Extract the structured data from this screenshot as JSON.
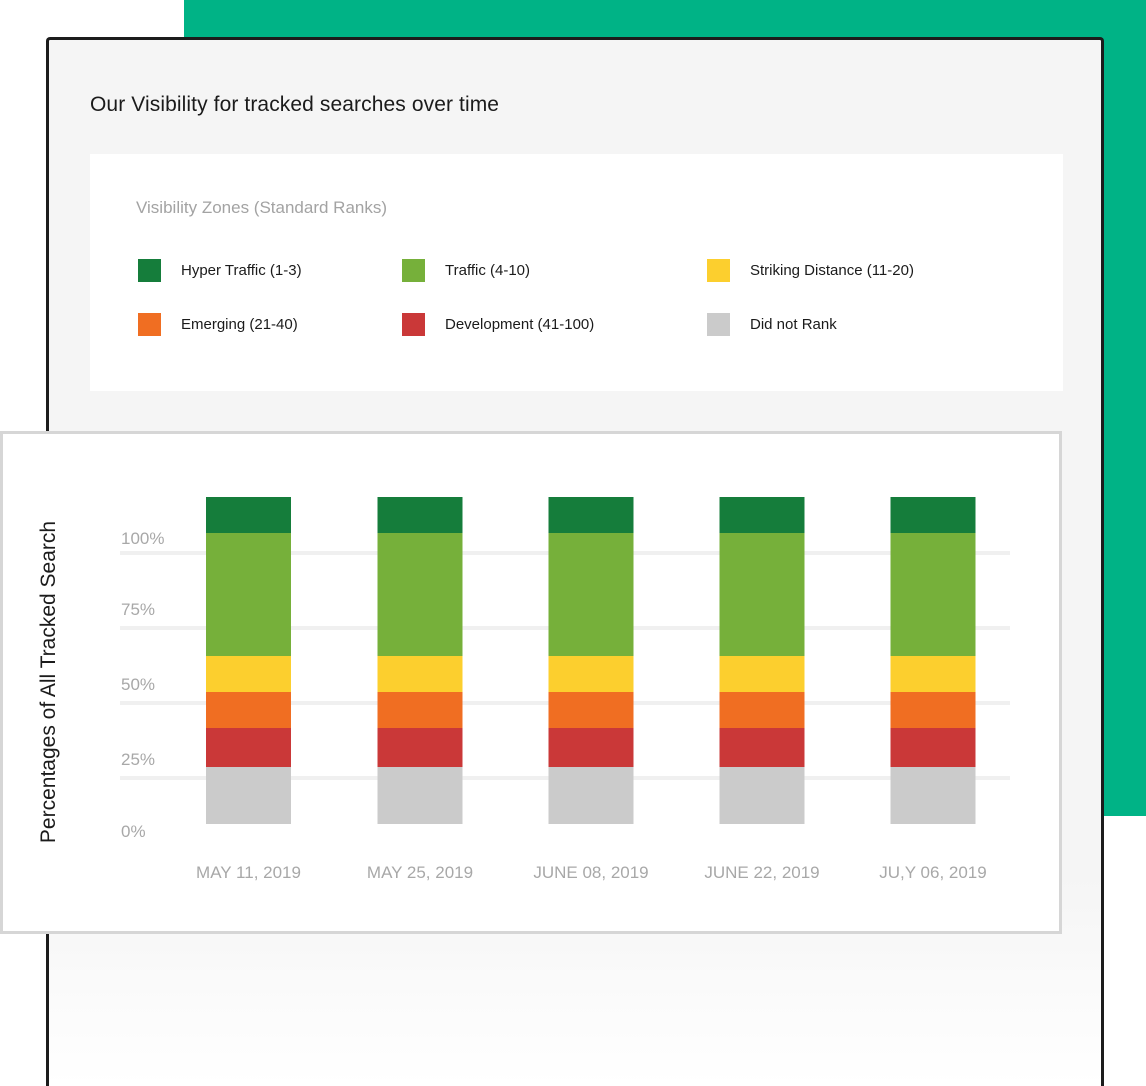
{
  "card": {
    "title": "Our Visibility for tracked searches over time"
  },
  "legend": {
    "heading": "Visibility Zones (Standard Ranks)",
    "items": [
      {
        "label": "Hyper Traffic (1-3)",
        "color": "#157d3b"
      },
      {
        "label": "Traffic (4-10)",
        "color": "#76b03a"
      },
      {
        "label": "Striking Distance (11-20)",
        "color": "#fccf2e"
      },
      {
        "label": "Emerging (21-40)",
        "color": "#f06e22"
      },
      {
        "label": "Development (41-100)",
        "color": "#ca3838"
      },
      {
        "label": "Did not Rank",
        "color": "#cbcbcb"
      }
    ]
  },
  "colors": {
    "accent": "#00b386",
    "gridline": "#f0f0f0",
    "tick_text": "#a8a8a8"
  },
  "chart_data": {
    "type": "bar",
    "stacked": true,
    "ylabel": "Percentages of All Tracked Search",
    "ytick_labels": [
      "100%",
      "75%",
      "50%",
      "25%",
      "0%"
    ],
    "yticks": [
      100,
      75,
      50,
      25,
      0
    ],
    "ylim": [
      0,
      110
    ],
    "grid": true,
    "categories": [
      "MAY 11, 2019",
      "MAY 25, 2019",
      "JUNE 08, 2019",
      "JUNE 22, 2019",
      "JU,Y 06, 2019"
    ],
    "series": [
      {
        "name": "Did not Rank",
        "color": "#cbcbcb",
        "values": [
          19,
          19,
          19,
          19,
          19
        ]
      },
      {
        "name": "Development (41-100)",
        "color": "#ca3838",
        "values": [
          13,
          13,
          13,
          13,
          13
        ]
      },
      {
        "name": "Emerging (21-40)",
        "color": "#f06e22",
        "values": [
          12,
          12,
          12,
          12,
          12
        ]
      },
      {
        "name": "Striking Distance (11-20)",
        "color": "#fccf2e",
        "values": [
          12,
          12,
          12,
          12,
          12
        ]
      },
      {
        "name": "Traffic (4-10)",
        "color": "#76b03a",
        "values": [
          41,
          41,
          41,
          41,
          41
        ]
      },
      {
        "name": "Hyper Traffic (1-3)",
        "color": "#157d3b",
        "values": [
          12,
          12,
          12,
          12,
          12
        ]
      }
    ]
  }
}
